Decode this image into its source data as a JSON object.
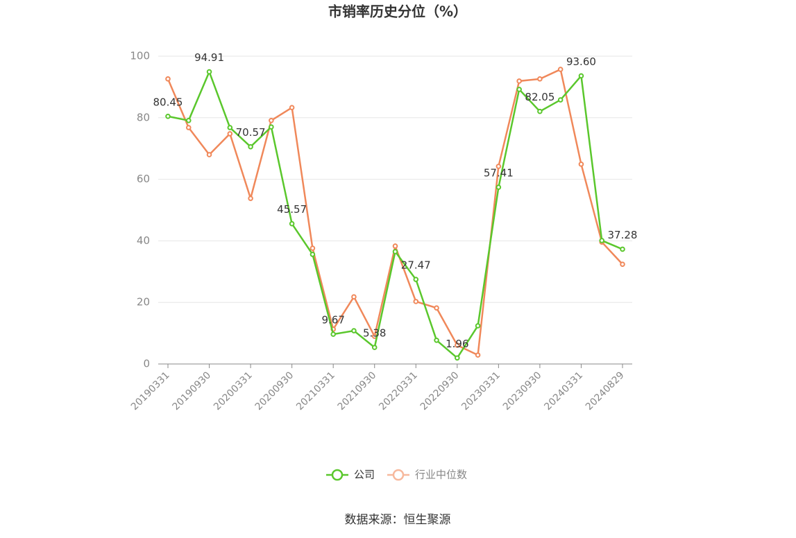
{
  "chart_data": {
    "type": "line",
    "title": "市销率历史分位（%）",
    "source": "数据来源：恒生聚源",
    "categories": [
      "20190331",
      null,
      "20190930",
      null,
      "20200331",
      null,
      "20200930",
      null,
      "20210331",
      null,
      "20210930",
      null,
      "20220331",
      null,
      "20220930",
      null,
      "20230331",
      null,
      "20230930",
      null,
      "20240331",
      null,
      "20240829"
    ],
    "ylim": [
      0,
      100
    ],
    "yticks": [
      0,
      20,
      40,
      60,
      80,
      100
    ],
    "grid": true,
    "series": [
      {
        "name": "公司",
        "color": "#5ac72c",
        "values": [
          80.45,
          79.1,
          94.91,
          76.8,
          70.57,
          77.0,
          45.57,
          35.6,
          9.67,
          10.8,
          5.38,
          36.5,
          27.47,
          7.7,
          1.96,
          12.4,
          57.41,
          89.2,
          82.05,
          85.8,
          93.6,
          40.1,
          37.28
        ],
        "value_labels": [
          "80.45",
          null,
          "94.91",
          null,
          "70.57",
          null,
          "45.57",
          null,
          "9.67",
          null,
          "5.38",
          null,
          "27.47",
          null,
          "1.96",
          null,
          "57.41",
          null,
          "82.05",
          null,
          "93.60",
          null,
          "37.28"
        ]
      },
      {
        "name": "行业中位数",
        "color": "#f0885a",
        "values": [
          92.6,
          76.8,
          68.0,
          74.8,
          53.8,
          79.1,
          83.3,
          37.6,
          11.3,
          21.8,
          9.0,
          38.3,
          20.3,
          18.2,
          6.1,
          2.9,
          64.2,
          91.9,
          92.6,
          95.7,
          64.9,
          39.6,
          32.4
        ]
      }
    ]
  }
}
